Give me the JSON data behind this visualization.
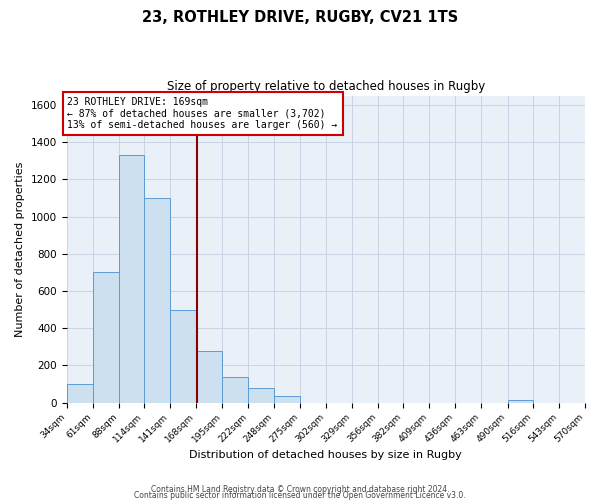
{
  "title_line1": "23, ROTHLEY DRIVE, RUGBY, CV21 1TS",
  "title_line2": "Size of property relative to detached houses in Rugby",
  "xlabel": "Distribution of detached houses by size in Rugby",
  "ylabel": "Number of detached properties",
  "bin_edges": [
    34,
    61,
    88,
    114,
    141,
    168,
    195,
    222,
    248,
    275,
    302,
    329,
    356,
    382,
    409,
    436,
    463,
    490,
    516,
    543,
    570
  ],
  "bar_heights": [
    100,
    700,
    1330,
    1100,
    500,
    280,
    140,
    80,
    35,
    0,
    0,
    0,
    0,
    0,
    0,
    0,
    0,
    15,
    0,
    0
  ],
  "bar_color": "#cce0f0",
  "bar_edgecolor": "#5b9bd5",
  "property_size": 169,
  "vline_color": "#8b0000",
  "annotation_line1": "23 ROTHLEY DRIVE: 169sqm",
  "annotation_line2": "← 87% of detached houses are smaller (3,702)",
  "annotation_line3": "13% of semi-detached houses are larger (560) →",
  "annotation_box_color": "#ffffff",
  "annotation_box_edgecolor": "#cc0000",
  "ylim": [
    0,
    1650
  ],
  "yticks": [
    0,
    200,
    400,
    600,
    800,
    1000,
    1200,
    1400,
    1600
  ],
  "background_color": "#ffffff",
  "plot_bg_color": "#eaf0f8",
  "grid_color": "#c8d4e4",
  "footer_line1": "Contains HM Land Registry data © Crown copyright and database right 2024.",
  "footer_line2": "Contains public sector information licensed under the Open Government Licence v3.0."
}
